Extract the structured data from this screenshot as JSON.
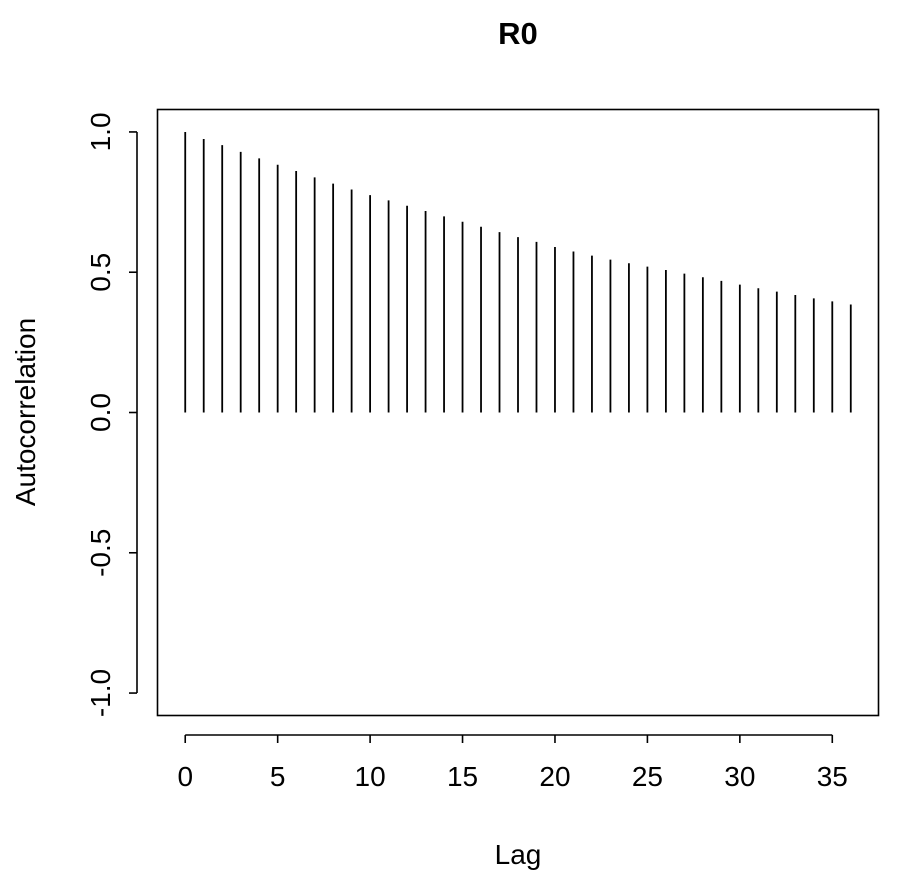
{
  "chart_data": {
    "type": "bar",
    "title": "R0",
    "xlabel": "Lag",
    "ylabel": "Autocorrelation",
    "xlim": [
      -1.5,
      37.5
    ],
    "ylim": [
      -1.08,
      1.08
    ],
    "x_ticks": [
      0,
      5,
      10,
      15,
      20,
      25,
      30,
      35
    ],
    "x_tick_labels": [
      "0",
      "5",
      "10",
      "15",
      "20",
      "25",
      "30",
      "35"
    ],
    "y_ticks": [
      -1.0,
      -0.5,
      0.0,
      0.5,
      1.0
    ],
    "y_tick_labels": [
      "-1.0",
      "-0.5",
      "0.0",
      "0.5",
      "1.0"
    ],
    "grid": false,
    "series": [
      {
        "x": [
          0,
          1,
          2,
          3,
          4,
          5,
          6,
          7,
          8,
          9,
          10,
          11,
          12,
          13,
          14,
          15,
          16,
          17,
          18,
          19,
          20,
          21,
          22,
          23,
          24,
          25,
          26,
          27,
          28,
          29,
          30,
          31,
          32,
          33,
          34,
          35,
          36
        ],
        "values": [
          1.0,
          0.975,
          0.953,
          0.929,
          0.906,
          0.883,
          0.861,
          0.838,
          0.816,
          0.795,
          0.775,
          0.756,
          0.737,
          0.718,
          0.699,
          0.68,
          0.662,
          0.643,
          0.625,
          0.608,
          0.59,
          0.574,
          0.559,
          0.545,
          0.532,
          0.52,
          0.508,
          0.495,
          0.482,
          0.469,
          0.456,
          0.443,
          0.431,
          0.419,
          0.407,
          0.396,
          0.385
        ]
      }
    ]
  }
}
